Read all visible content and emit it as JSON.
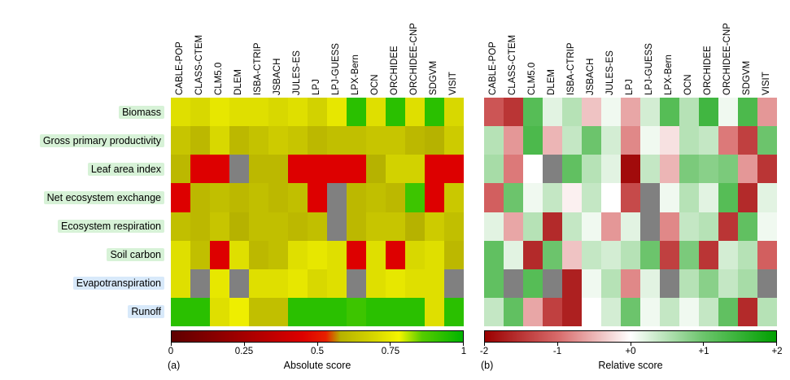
{
  "figure": {
    "panel_letters": [
      "(a)",
      "(b)"
    ]
  },
  "chart_data": [
    {
      "type": "heatmap",
      "title": "Absolute score",
      "colorbar_label": "Absolute score",
      "colorbar_ticks": [
        "0",
        "0.25",
        "0.5",
        "0.75",
        "1"
      ],
      "value_range": [
        0,
        1
      ],
      "legend_position": "bottom",
      "missing_color": "#808080",
      "colormap_stops": [
        [
          0.0,
          "#5f0000"
        ],
        [
          0.45,
          "#dd0000"
        ],
        [
          0.53,
          "#e82000"
        ],
        [
          0.58,
          "#b6b200"
        ],
        [
          0.7,
          "#d8d800"
        ],
        [
          0.78,
          "#f5f500"
        ],
        [
          0.86,
          "#55cc00"
        ],
        [
          1.0,
          "#00b400"
        ]
      ],
      "columns": [
        "CABLE-POP",
        "CLASS-CTEM",
        "CLM5.0",
        "DLEM",
        "ISBA-CTRIP",
        "JSBACH",
        "JULES-ES",
        "LPJ",
        "LPJ-GUESS",
        "LPX-Bern",
        "OCN",
        "ORCHIDEE",
        "ORCHIDEE-CNP",
        "SDGVM",
        "VISIT"
      ],
      "rows": [
        {
          "label": "Biomass",
          "highlight": "#d7f2d7"
        },
        {
          "label": "Gross primary productivity",
          "highlight": "#d7f2d7"
        },
        {
          "label": "Leaf area index",
          "highlight": "#d7f2d7"
        },
        {
          "label": "Net ecosystem exchange",
          "highlight": "#d7f2d7"
        },
        {
          "label": "Ecosystem respiration",
          "highlight": "#d7f2d7"
        },
        {
          "label": "Soil carbon",
          "highlight": "#d7f2d7"
        },
        {
          "label": "Evapotranspiration",
          "highlight": "#d8e9fa"
        },
        {
          "label": "Runoff",
          "highlight": "#d8e9fa"
        }
      ],
      "values": [
        [
          0.72,
          0.7,
          0.74,
          0.72,
          0.72,
          0.7,
          0.72,
          0.68,
          0.74,
          0.93,
          0.72,
          0.93,
          0.72,
          0.93,
          0.7
        ],
        [
          0.64,
          0.6,
          0.7,
          0.6,
          0.63,
          0.66,
          0.64,
          0.6,
          0.62,
          0.62,
          0.64,
          0.64,
          0.6,
          0.58,
          0.66
        ],
        [
          0.6,
          0.45,
          0.45,
          null,
          0.6,
          0.6,
          0.45,
          0.45,
          0.45,
          0.45,
          0.58,
          0.68,
          0.68,
          0.45,
          0.45
        ],
        [
          0.45,
          0.6,
          0.62,
          0.6,
          0.62,
          0.6,
          0.62,
          0.45,
          null,
          0.6,
          0.62,
          0.6,
          0.9,
          0.45,
          0.65
        ],
        [
          0.62,
          0.6,
          0.64,
          0.58,
          0.62,
          0.62,
          0.6,
          0.62,
          null,
          0.6,
          0.64,
          0.64,
          0.58,
          0.66,
          0.62
        ],
        [
          0.72,
          0.62,
          0.45,
          0.72,
          0.6,
          0.62,
          0.72,
          0.74,
          0.72,
          0.45,
          0.72,
          0.45,
          0.7,
          0.72,
          0.6
        ],
        [
          0.72,
          null,
          0.74,
          null,
          0.72,
          0.72,
          0.74,
          0.7,
          0.72,
          null,
          0.72,
          0.74,
          0.72,
          0.72,
          null
        ],
        [
          0.93,
          0.93,
          0.72,
          0.76,
          0.62,
          0.62,
          0.93,
          0.93,
          0.93,
          0.9,
          0.93,
          0.93,
          0.93,
          0.72,
          0.93
        ]
      ]
    },
    {
      "type": "heatmap",
      "title": "Relative score",
      "colorbar_label": "Relative score",
      "colorbar_ticks": [
        "-2",
        "-1",
        "+0",
        "+1",
        "+2"
      ],
      "value_range": [
        -2,
        2
      ],
      "legend_position": "bottom",
      "missing_color": "#808080",
      "colormap_stops": [
        [
          -2,
          "#9b0000"
        ],
        [
          -1,
          "#d86a6a"
        ],
        [
          0,
          "#ffffff"
        ],
        [
          1,
          "#6cc46c"
        ],
        [
          2,
          "#00a000"
        ]
      ],
      "columns": [
        "CABLE-POP",
        "CLASS-CTEM",
        "CLM5.0",
        "DLEM",
        "ISBA-CTRIP",
        "JSBACH",
        "JULES-ES",
        "LPJ",
        "LPJ-GUESS",
        "LPX-Bern",
        "OCN",
        "ORCHIDEE",
        "ORCHIDEE-CNP",
        "SDGVM",
        "VISIT"
      ],
      "rows": [
        {
          "label": "Biomass",
          "highlight": "#d7f2d7"
        },
        {
          "label": "Gross primary productivity",
          "highlight": "#d7f2d7"
        },
        {
          "label": "Leaf area index",
          "highlight": "#d7f2d7"
        },
        {
          "label": "Net ecosystem exchange",
          "highlight": "#d7f2d7"
        },
        {
          "label": "Ecosystem respiration",
          "highlight": "#d7f2d7"
        },
        {
          "label": "Soil carbon",
          "highlight": "#d7f2d7"
        },
        {
          "label": "Evapotranspiration",
          "highlight": "#d8e9fa"
        },
        {
          "label": "Runoff",
          "highlight": "#d8e9fa"
        }
      ],
      "values": [
        [
          -1.2,
          -1.5,
          1.2,
          0.2,
          0.5,
          -0.4,
          0.1,
          -0.6,
          0.3,
          1.2,
          0.5,
          1.4,
          0.1,
          1.3,
          -0.7
        ],
        [
          0.5,
          -0.7,
          1.3,
          -0.5,
          0.4,
          1.0,
          0.3,
          -0.8,
          0.1,
          -0.2,
          0.5,
          0.4,
          -0.9,
          -1.4,
          1.0
        ],
        [
          0.6,
          -0.9,
          0.0,
          null,
          1.1,
          0.5,
          0.2,
          -1.9,
          0.4,
          -0.5,
          0.9,
          0.8,
          0.9,
          -0.7,
          -1.5
        ],
        [
          -1.1,
          1.0,
          0.1,
          0.4,
          -0.1,
          0.4,
          0.0,
          -1.3,
          null,
          0.1,
          0.5,
          0.2,
          1.2,
          -1.6,
          0.2
        ],
        [
          0.2,
          -0.6,
          0.5,
          -1.6,
          0.4,
          0.1,
          -0.7,
          0.2,
          null,
          -0.8,
          0.4,
          0.5,
          -1.5,
          1.1,
          0.1
        ],
        [
          1.1,
          0.2,
          -1.6,
          1.0,
          -0.4,
          0.4,
          0.3,
          0.5,
          1.0,
          -1.4,
          0.9,
          -1.5,
          0.3,
          0.5,
          -1.1
        ],
        [
          1.1,
          null,
          1.2,
          null,
          -1.7,
          0.1,
          0.5,
          -0.8,
          0.2,
          null,
          0.5,
          0.8,
          0.4,
          0.6,
          null
        ],
        [
          0.4,
          1.1,
          -0.6,
          -1.4,
          -1.7,
          0.0,
          0.3,
          1.0,
          0.1,
          0.4,
          0.1,
          0.4,
          1.1,
          -1.6,
          0.5
        ]
      ]
    }
  ]
}
